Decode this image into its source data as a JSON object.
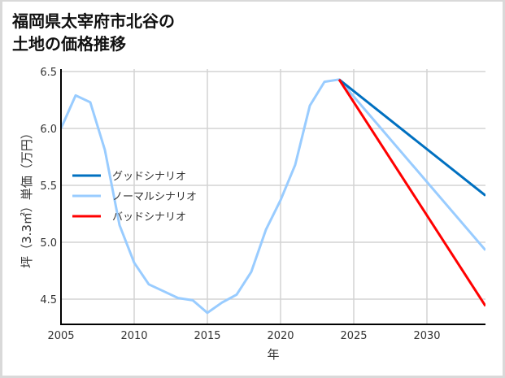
{
  "title_line1": "福岡県太宰府市北谷の",
  "title_line2": "土地の価格推移",
  "chart_data": {
    "type": "line",
    "title": "福岡県太宰府市北谷の土地の価格推移",
    "xlabel": "年",
    "ylabel": "坪（3.3㎡）単価（万円）",
    "xlim": [
      2005,
      2034
    ],
    "ylim": [
      4.28,
      6.52
    ],
    "xticks": [
      2005,
      2010,
      2015,
      2020,
      2025,
      2030
    ],
    "yticks": [
      4.5,
      5.0,
      5.5,
      6.0,
      6.5
    ],
    "ytick_labels": [
      "4.5",
      "5.0",
      "5.5",
      "6.0",
      "6.5"
    ],
    "grid": true,
    "legend_position": "center-left",
    "series": [
      {
        "name": "グッドシナリオ",
        "color": "#0070c0",
        "x": [
          2024,
          2034
        ],
        "values": [
          6.43,
          5.41
        ]
      },
      {
        "name": "ノーマルシナリオ",
        "color": "#99ccff",
        "x": [
          2005,
          2006,
          2007,
          2008,
          2009,
          2010,
          2011,
          2012,
          2013,
          2014,
          2015,
          2016,
          2017,
          2018,
          2019,
          2020,
          2021,
          2022,
          2023,
          2024,
          2034
        ],
        "values": [
          6.0,
          6.29,
          6.23,
          5.81,
          5.15,
          4.82,
          4.63,
          4.57,
          4.51,
          4.49,
          4.38,
          4.47,
          4.54,
          4.74,
          5.11,
          5.37,
          5.68,
          6.2,
          6.41,
          6.43,
          4.93
        ]
      },
      {
        "name": "バッドシナリオ",
        "color": "#ff0000",
        "x": [
          2024,
          2034
        ],
        "values": [
          6.43,
          4.44
        ]
      }
    ]
  }
}
